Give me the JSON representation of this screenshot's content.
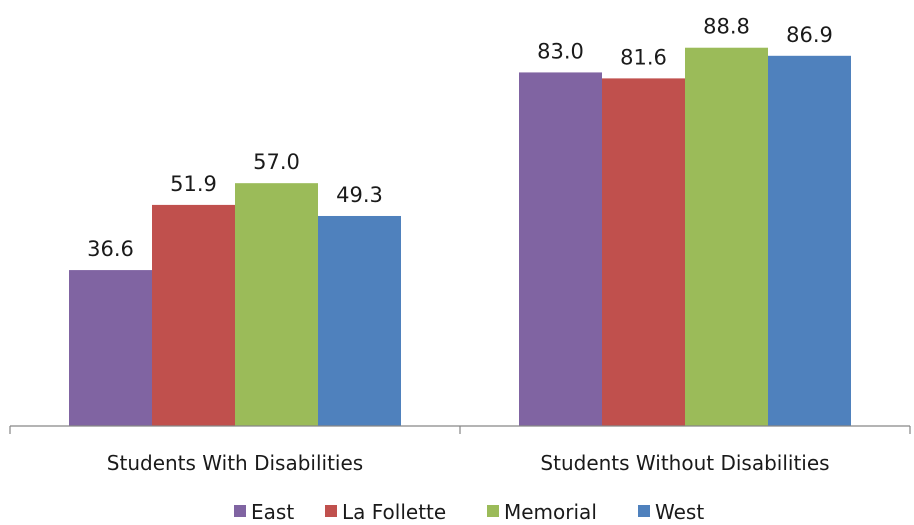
{
  "chart_data": {
    "type": "bar",
    "categories": [
      "Students With Disabilities",
      "Students Without Disabilities"
    ],
    "series": [
      {
        "name": "East",
        "values": [
          36.6,
          83.0
        ],
        "labels": [
          "36.6",
          "83.0"
        ],
        "color": "#8064A2"
      },
      {
        "name": "La Follette",
        "values": [
          51.9,
          81.6
        ],
        "labels": [
          "51.9",
          "81.6"
        ],
        "color": "#C0504D"
      },
      {
        "name": "Memorial",
        "values": [
          57.0,
          88.8
        ],
        "labels": [
          "57.0",
          "88.8"
        ],
        "color": "#9BBB59"
      },
      {
        "name": "West",
        "values": [
          49.3,
          86.9
        ],
        "labels": [
          "49.3",
          "86.9"
        ],
        "color": "#4F81BD"
      }
    ],
    "ylim": [
      0,
      100
    ],
    "grid": false,
    "legend_position": "bottom"
  }
}
